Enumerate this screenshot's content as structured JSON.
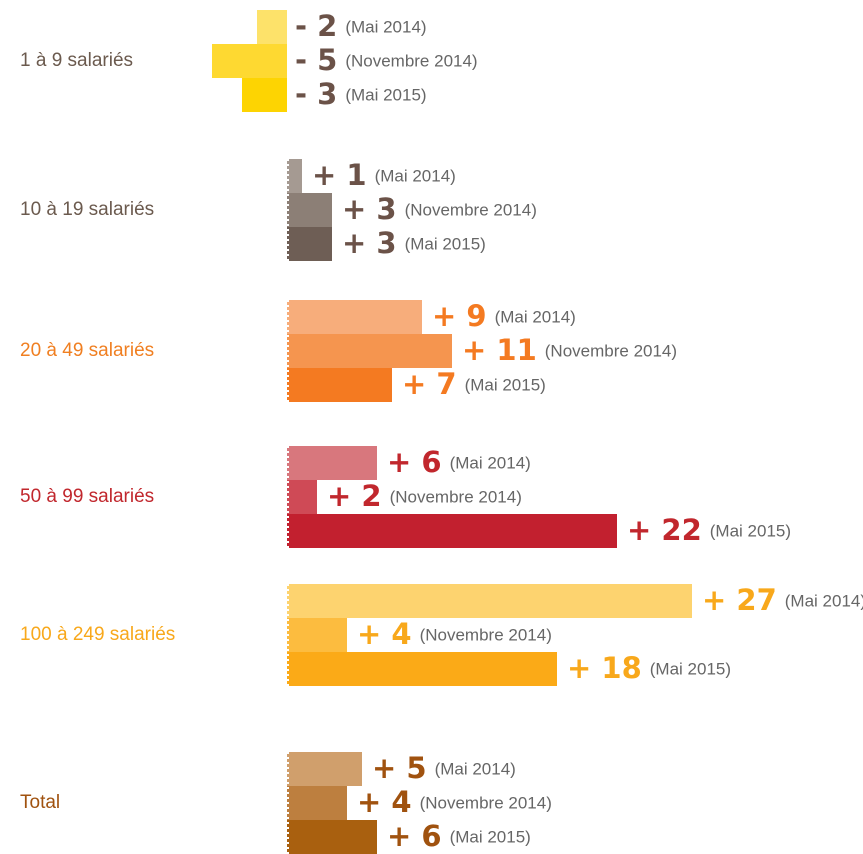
{
  "chart_data": {
    "type": "bar",
    "categories": [
      "1 à 9 salariés",
      "10 à 19 salariés",
      "20 à 49 salariés",
      "50 à 99 salariés",
      "100 à 249 salariés",
      "Total"
    ],
    "label_colors": [
      "#6b5a4e",
      "#6b5a4e",
      "#f07f21",
      "#c1272d",
      "#f8a81b",
      "#a0520f"
    ],
    "value_label_colors": [
      "#6b5248",
      "#6b5248",
      "#f47a21",
      "#c1272d",
      "#f8a81b",
      "#a0520f"
    ],
    "bar_colors": [
      [
        "#fde26a",
        "#fed931",
        "#fdd402"
      ],
      [
        "#a59a92",
        "#8c7f76",
        "#6e5e55"
      ],
      [
        "#f7ad7b",
        "#f5954f",
        "#f47a21"
      ],
      [
        "#d8777d",
        "#cf4a56",
        "#c2202f"
      ],
      [
        "#fdd36f",
        "#fcbc3f",
        "#fbaa17"
      ],
      [
        "#d09f6c",
        "#bd7f3f",
        "#a9600f"
      ]
    ],
    "series": [
      {
        "name": "(Mai 2014)",
        "values": [
          -2,
          1,
          9,
          6,
          27,
          5
        ],
        "value_labels": [
          "- 2",
          "+ 1",
          "+ 9",
          "+ 6",
          "+ 27",
          "+ 5"
        ]
      },
      {
        "name": "(Novembre 2014)",
        "values": [
          -5,
          3,
          11,
          2,
          4,
          4
        ],
        "value_labels": [
          "- 5",
          "+ 3",
          "+ 11",
          "+ 2",
          "+ 4",
          "+ 4"
        ]
      },
      {
        "name": "(Mai 2015)",
        "values": [
          -3,
          3,
          7,
          22,
          18,
          6
        ],
        "value_labels": [
          "- 3",
          "+ 3",
          "+ 7",
          "+ 22",
          "+ 18",
          "+ 6"
        ]
      }
    ]
  }
}
